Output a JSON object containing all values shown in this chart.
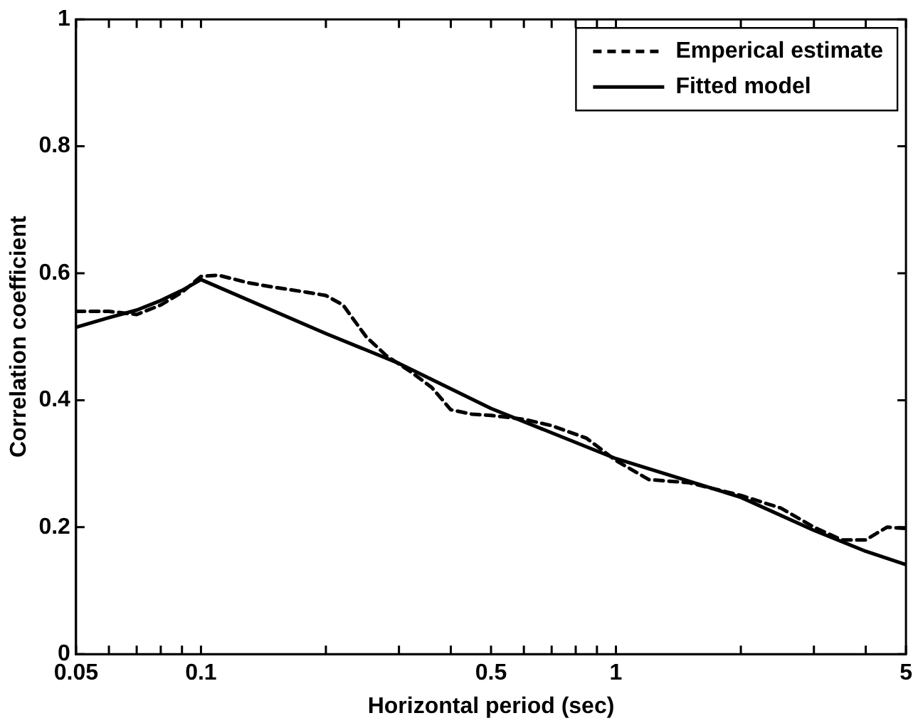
{
  "chart_data": {
    "type": "line",
    "xlabel": "Horizontal period (sec)",
    "ylabel": "Correlation coefficient",
    "log": "x",
    "xlim": [
      0.05,
      5
    ],
    "ylim": [
      0,
      1
    ],
    "xticks": [
      0.05,
      {
        "value": 0.06,
        "label": null
      },
      {
        "value": 0.07,
        "label": null
      },
      {
        "value": 0.08,
        "label": null
      },
      {
        "value": 0.09,
        "label": null
      },
      0.1,
      {
        "value": 0.2,
        "label": null
      },
      {
        "value": 0.3,
        "label": null
      },
      {
        "value": 0.4,
        "label": null
      },
      0.5,
      {
        "value": 0.6,
        "label": null
      },
      {
        "value": 0.7,
        "label": null
      },
      {
        "value": 0.8,
        "label": null
      },
      {
        "value": 0.9,
        "label": null
      },
      1,
      {
        "value": 2,
        "label": null
      },
      {
        "value": 3,
        "label": null
      },
      {
        "value": 4,
        "label": null
      },
      5
    ],
    "yticks": [
      0,
      0.2,
      0.4,
      0.6,
      0.8,
      1
    ],
    "grid": false,
    "legend": "top right",
    "marker": "none",
    "series": [
      {
        "name": "Emperical estimate",
        "color": "#000000",
        "line_style": "dashed",
        "x": [
          0.05,
          0.06,
          0.07,
          0.08,
          0.09,
          0.1,
          0.11,
          0.13,
          0.15,
          0.18,
          0.2,
          0.22,
          0.25,
          0.28,
          0.32,
          0.36,
          0.4,
          0.45,
          0.5,
          0.6,
          0.7,
          0.85,
          1,
          1.2,
          1.5,
          2,
          2.5,
          3,
          3.5,
          4,
          4.5,
          5
        ],
        "values": [
          0.54,
          0.54,
          0.535,
          0.55,
          0.57,
          0.595,
          0.597,
          0.585,
          0.578,
          0.57,
          0.565,
          0.55,
          0.5,
          0.47,
          0.445,
          0.42,
          0.385,
          0.378,
          0.376,
          0.37,
          0.36,
          0.34,
          0.305,
          0.275,
          0.27,
          0.25,
          0.23,
          0.2,
          0.18,
          0.18,
          0.2,
          0.198
        ]
      },
      {
        "name": "Fitted model",
        "color": "#000000",
        "line_style": "solid",
        "x": [
          0.05,
          0.06,
          0.07,
          0.08,
          0.09,
          0.1,
          0.2,
          0.3,
          0.5,
          1,
          2,
          3,
          4,
          5
        ],
        "values": [
          0.515,
          0.53,
          0.542,
          0.557,
          0.573,
          0.59,
          0.505,
          0.458,
          0.387,
          0.308,
          0.247,
          0.195,
          0.162,
          0.141
        ]
      }
    ]
  }
}
